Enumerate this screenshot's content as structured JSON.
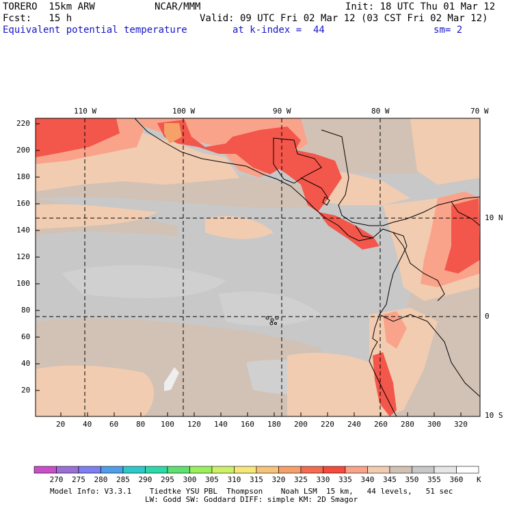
{
  "header": {
    "model": "TORERO  15km ARW",
    "org": "NCAR/MMM",
    "init": "Init: 18 UTC Thu 01 Mar 12",
    "fcst": "Fcst:   15 h",
    "valid": "Valid: 09 UTC Fri 02 Mar 12 (03 CST Fri 02 Mar 12)",
    "field": "Equivalent potential temperature",
    "level": "at k-index =  44",
    "smooth": "sm= 2"
  },
  "map": {
    "top_lon_labels": [
      "110 W",
      "100 W",
      "90 W",
      "80 W",
      "70 W"
    ],
    "right_lat_labels": [
      "10 N",
      "0",
      "10 S"
    ],
    "left_grid_labels": [
      "220",
      "200",
      "180",
      "160",
      "140",
      "120",
      "100",
      "80",
      "60",
      "40",
      "20"
    ],
    "bottom_grid_labels": [
      "20",
      "40",
      "60",
      "80",
      "100",
      "120",
      "140",
      "160",
      "180",
      "200",
      "220",
      "240",
      "260",
      "280",
      "300",
      "320"
    ],
    "field_colors": {
      "ocean_main": "#c8c8c8",
      "ocean_tan": "#d2c2b5",
      "peach": "#f2ccb1",
      "salmon": "#f9a38b",
      "red": "#f3564a",
      "deep_red": "#f34c3e",
      "orange_spot": "#f6a167",
      "near_white": "#e6e6e6"
    }
  },
  "colorbar": {
    "unit": "K",
    "labels": [
      "270",
      "275",
      "280",
      "285",
      "290",
      "295",
      "300",
      "305",
      "310",
      "315",
      "320",
      "325",
      "330",
      "335",
      "340",
      "345",
      "350",
      "355",
      "360"
    ],
    "colors": [
      "#c84fc8",
      "#9a6fd6",
      "#7d7ff0",
      "#4f9fe8",
      "#2dc8c8",
      "#2ed8a8",
      "#5fe070",
      "#9aef5f",
      "#ccf06a",
      "#f6e77a",
      "#f6c37a",
      "#f4a06b",
      "#f26b52",
      "#f34c3e",
      "#f9a38b",
      "#f2ccb1",
      "#d2c2b5",
      "#c8c8c8",
      "#e6e6e6",
      "#ffffff"
    ]
  },
  "footer": {
    "line1": "Model Info: V3.3.1    Tiedtke YSU PBL  Thompson    Noah LSM  15 km,   44 levels,   51 sec",
    "line2": "LW: Godd SW: Goddard DIFF: simple KM: 2D Smagor"
  }
}
